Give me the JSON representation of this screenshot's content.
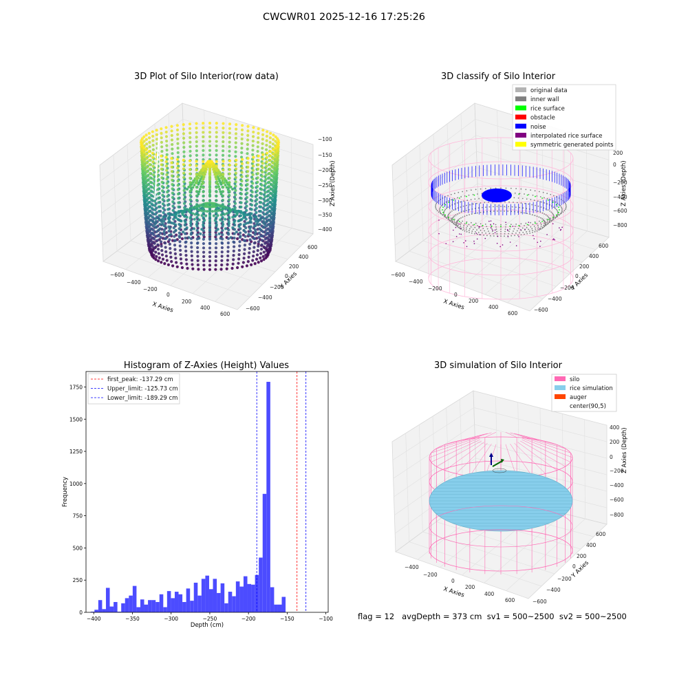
{
  "figure": {
    "title": "CWCWR01 2025-12-16 17:25:26",
    "status": "flag = 12   avgDepth = 373 cm  sv1 = 500~2500  sv2 = 500~2500"
  },
  "colors": {
    "histogram_bar": "#4c4cff",
    "first_peak_line": "#ff0000",
    "limit_lines": "#0000ff",
    "silo_wire": "#ff69b4",
    "rice_fill": "#87ceeb",
    "auger": "#ff4500",
    "noise": "#0000ff",
    "rice_surface": "#00ff00",
    "inner_wall": "#808080"
  },
  "chart_data": [
    {
      "type": "scatter",
      "title": "3D Plot of Silo Interior(row data)",
      "xlabel": "X Axies",
      "ylabel": "Y Axies",
      "zlabel": "Z Axies (Depth)",
      "x_ticks": [
        "−600",
        "−400",
        "−200",
        "0",
        "200",
        "400",
        "600"
      ],
      "y_ticks": [
        "−600",
        "−400",
        "−200",
        "0",
        "200",
        "400",
        "600"
      ],
      "z_ticks": [
        "−400",
        "−350",
        "−300",
        "−250",
        "−200",
        "−150",
        "−100"
      ],
      "colormap": "viridis"
    },
    {
      "type": "scatter",
      "title": "3D classify of Silo Interior",
      "xlabel": "X Axies",
      "ylabel": "Y Axies",
      "zlabel": "Z Axies (Depth)",
      "x_ticks": [
        "−600",
        "−400",
        "−200",
        "0",
        "200",
        "400",
        "600"
      ],
      "y_ticks": [
        "−600",
        "−400",
        "−200",
        "0",
        "200",
        "400",
        "600"
      ],
      "z_ticks": [
        "−800",
        "−600",
        "−400",
        "−200",
        "0",
        "200"
      ],
      "legend": [
        {
          "label": "original data",
          "color": "#b3b3b3"
        },
        {
          "label": "inner wall",
          "color": "#808080"
        },
        {
          "label": "rice surface",
          "color": "#00ff00"
        },
        {
          "label": "obstacle",
          "color": "#ff0000"
        },
        {
          "label": "noise",
          "color": "#0000ff"
        },
        {
          "label": "interpolated rice surface",
          "color": "#800080"
        },
        {
          "label": "symmetric generated points",
          "color": "#ffff00"
        }
      ],
      "legend_position": "top-right"
    },
    {
      "type": "bar",
      "title": "Histogram of Z-Axies (Height) Values",
      "xlabel": "Depth (cm)",
      "ylabel": "Frequency",
      "xlim": [
        -410,
        -97
      ],
      "ylim": [
        0,
        1870
      ],
      "x_ticks": [
        -400,
        -350,
        -300,
        -250,
        -200,
        -150,
        -100
      ],
      "x_tick_labels": [
        "−400",
        "−350",
        "−300",
        "−250",
        "−200",
        "−150",
        "−100"
      ],
      "y_ticks": [
        0,
        250,
        500,
        750,
        1000,
        1250,
        1500,
        1750
      ],
      "y_tick_labels": [
        "0",
        "250",
        "500",
        "750",
        "1000",
        "1250",
        "1500",
        "1750"
      ],
      "bin_start": -404,
      "bin_width": 4.94,
      "values": [
        5,
        20,
        95,
        25,
        190,
        45,
        80,
        5,
        70,
        110,
        130,
        205,
        40,
        100,
        60,
        95,
        95,
        80,
        140,
        40,
        165,
        110,
        160,
        140,
        80,
        185,
        90,
        230,
        130,
        260,
        285,
        180,
        260,
        150,
        225,
        70,
        160,
        125,
        240,
        200,
        280,
        220,
        215,
        290,
        425,
        920,
        1790,
        195,
        60,
        60,
        120
      ],
      "vlines": [
        {
          "label": "first_peak: -137.29 cm",
          "x": -137.29,
          "color": "#ff0000"
        },
        {
          "label": "Upper_limit: -125.73 cm",
          "x": -125.73,
          "color": "#0000ff"
        },
        {
          "label": "Lower_limit: -189.29 cm",
          "x": -189.29,
          "color": "#0000ff"
        }
      ],
      "legend_position": "top-left"
    },
    {
      "type": "scatter",
      "title": "3D simulation of Silo Interior",
      "xlabel": "X Axies",
      "ylabel": "Y Axies",
      "zlabel": "Z Axies (Depth)",
      "x_ticks": [
        "−400",
        "−200",
        "0",
        "200",
        "400",
        "600"
      ],
      "y_ticks": [
        "−600",
        "−400",
        "−200",
        "0",
        "200",
        "400",
        "600"
      ],
      "z_ticks": [
        "−800",
        "−600",
        "−400",
        "−200",
        "0",
        "200",
        "400"
      ],
      "legend": [
        {
          "label": "silo",
          "color": "#ff69b4"
        },
        {
          "label": "rice simulation",
          "color": "#87ceeb"
        },
        {
          "label": "auger",
          "color": "#ff4500"
        },
        {
          "label": "center(90,5)",
          "color": ""
        }
      ],
      "legend_position": "top-right"
    }
  ]
}
